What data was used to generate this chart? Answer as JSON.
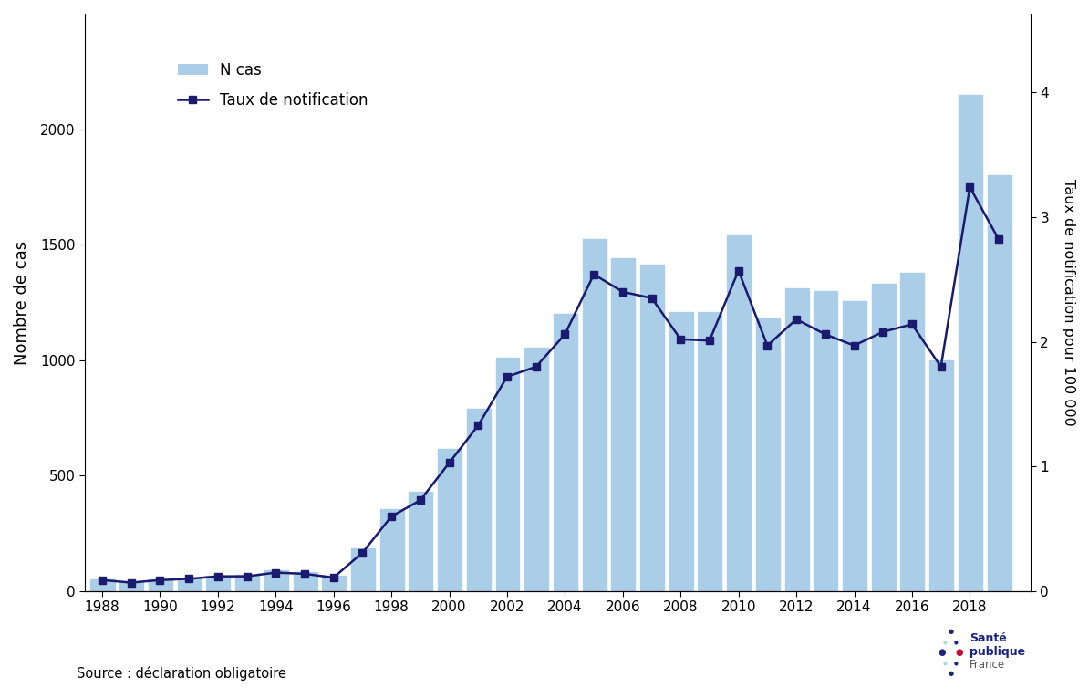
{
  "years": [
    1988,
    1989,
    1990,
    1991,
    1992,
    1993,
    1994,
    1995,
    1996,
    1997,
    1998,
    1999,
    2000,
    2001,
    2002,
    2003,
    2004,
    2005,
    2006,
    2007,
    2008,
    2009,
    2010,
    2011,
    2012,
    2013,
    2014,
    2015,
    2016,
    2017,
    2018,
    2019
  ],
  "n_cas": [
    52,
    38,
    52,
    55,
    68,
    72,
    90,
    82,
    67,
    185,
    355,
    430,
    615,
    790,
    1010,
    1055,
    1200,
    1525,
    1440,
    1415,
    1210,
    1210,
    1540,
    1180,
    1310,
    1300,
    1255,
    1330,
    1380,
    1000,
    2150,
    1800
  ],
  "taux": [
    0.09,
    0.07,
    0.09,
    0.1,
    0.12,
    0.12,
    0.15,
    0.14,
    0.11,
    0.31,
    0.6,
    0.73,
    1.03,
    1.33,
    1.72,
    1.8,
    2.06,
    2.54,
    2.4,
    2.35,
    2.02,
    2.01,
    2.57,
    1.97,
    2.18,
    2.06,
    1.97,
    2.08,
    2.14,
    1.8,
    3.24,
    2.82
  ],
  "bar_color": "#aacde8",
  "line_color": "#1a1a6e",
  "marker_color": "#1a1a6e",
  "ylabel_left": "Nombre de cas",
  "ylabel_right": "Taux de notification pour 100 000",
  "source_text": "Source : déclaration obligatoire",
  "ylim_left": [
    0,
    2500
  ],
  "ylim_right": [
    0,
    4.629629
  ],
  "yticks_left": [
    0,
    500,
    1000,
    1500,
    2000
  ],
  "yticks_right": [
    0,
    1,
    2,
    3,
    4
  ],
  "legend_ncas_label": "N cas",
  "legend_taux_label": "Taux de notification",
  "background_color": "#ffffff"
}
